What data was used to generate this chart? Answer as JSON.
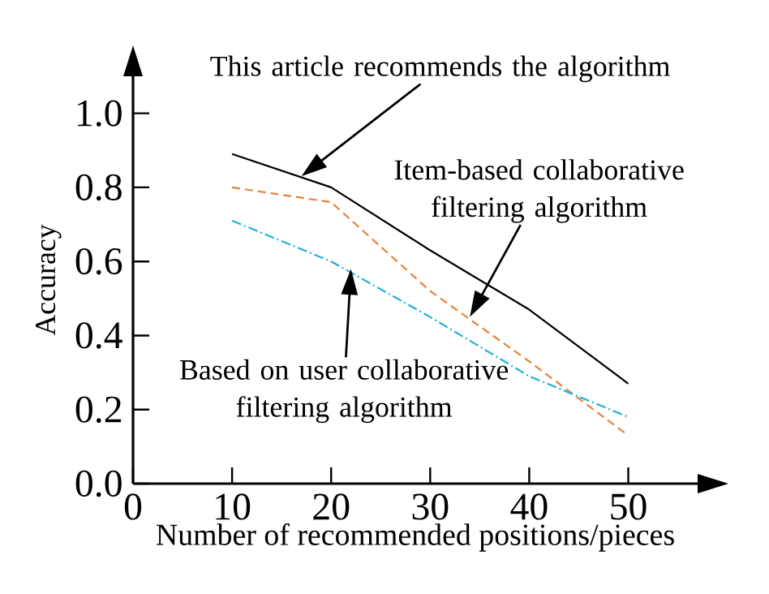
{
  "chart_data": {
    "type": "line",
    "xlabel": "Number of recommended positions/pieces",
    "ylabel": "Accuracy",
    "x": [
      10,
      20,
      30,
      40,
      50
    ],
    "series": [
      {
        "color": "#000000",
        "line_style": "solid",
        "values": [
          0.89,
          0.8,
          0.63,
          0.47,
          0.27
        ]
      },
      {
        "color": "#e8803a",
        "line_style": "dashed",
        "values": [
          0.8,
          0.76,
          0.52,
          0.33,
          0.13
        ]
      },
      {
        "color": "#1fb0d8",
        "line_style": "dashdot",
        "values": [
          0.71,
          0.6,
          0.45,
          0.29,
          0.18
        ]
      }
    ],
    "annotations": [
      "This article recommends the algorithm",
      "Item-based collaborative filtering algorithm",
      "Based on user collaborative filtering algorithm"
    ],
    "xlim": [
      0,
      57
    ],
    "ylim": [
      0,
      1.1
    ],
    "xticks": [
      0,
      10,
      20,
      30,
      40,
      50
    ],
    "yticks": [
      {
        "value": 0,
        "label": "0.0"
      },
      {
        "value": 0.2,
        "label": "0.2"
      },
      {
        "value": 0.4,
        "label": "0.4"
      },
      {
        "value": 0.6,
        "label": "0.6"
      },
      {
        "value": 0.8,
        "label": "0.8"
      },
      {
        "value": 1.0,
        "label": "1.0"
      }
    ],
    "grid": false
  }
}
